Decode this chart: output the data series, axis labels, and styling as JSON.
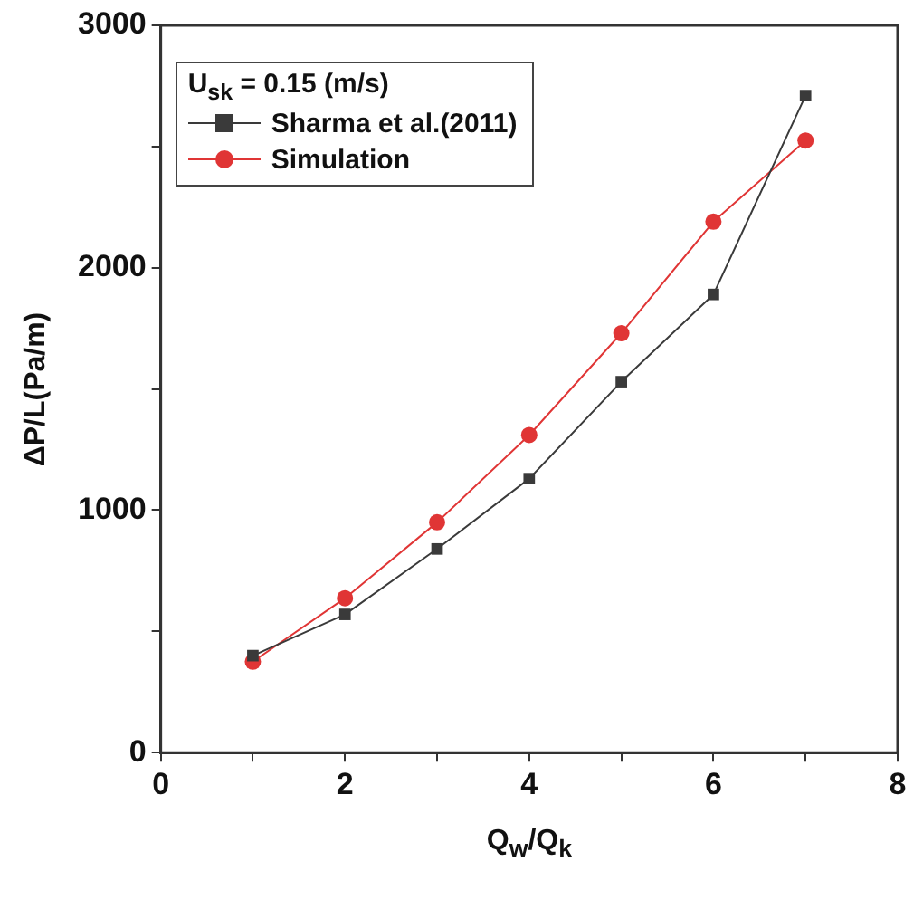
{
  "chart_data": {
    "type": "line",
    "xlabel": "Q$_{w}$/Q$_{k}$",
    "ylabel": "ΔP/L(Pa/m)",
    "legend_title": "U$_{sk}$ = 0.15 (m/s)",
    "legend": "top left",
    "x": [
      1,
      2,
      3,
      4,
      5,
      6,
      7
    ],
    "series": [
      {
        "name": "Sharma et al.(2011)",
        "color": "#3a3a3a",
        "marker": "square",
        "values": [
          400,
          570,
          840,
          1130,
          1530,
          1890,
          2710
        ]
      },
      {
        "name": "Simulation",
        "color": "#e03535",
        "marker": "circle",
        "values": [
          375,
          637,
          950,
          1310,
          1730,
          2190,
          2525
        ]
      }
    ],
    "xlim": [
      0,
      8
    ],
    "xticks": [
      0,
      {
        "value": 1,
        "label": null
      },
      2,
      {
        "value": 3,
        "label": null
      },
      4,
      {
        "value": 5,
        "label": null
      },
      6,
      {
        "value": 7,
        "label": null
      },
      8
    ],
    "ylim": [
      0,
      3000
    ],
    "yticks": [
      0,
      {
        "value": 500,
        "label": null
      },
      1000,
      {
        "value": 1500,
        "label": null
      },
      2000,
      {
        "value": 2500,
        "label": null
      },
      3000
    ],
    "grid": false,
    "line_style": "solid"
  }
}
